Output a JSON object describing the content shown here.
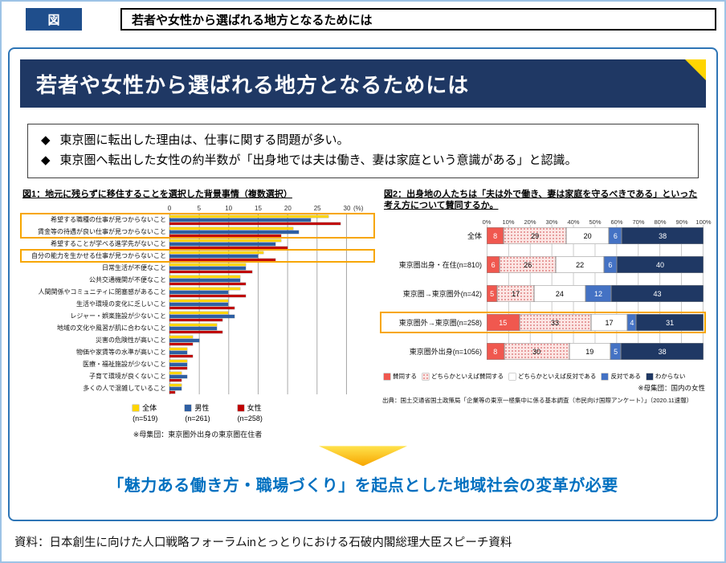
{
  "page_header": {
    "tag": "図",
    "title": "若者や女性から選ばれる地方となるためには"
  },
  "banner": {
    "title": "若者や女性から選ばれる地方となるためには",
    "background": "#1F3864",
    "corner_triangle_color": "#FFD500"
  },
  "key_points": [
    {
      "bullet": "◆",
      "text": "東京圏に転出した理由は、仕事に関する問題が多い。"
    },
    {
      "bullet": "◆",
      "text": "東京圏へ転出した女性の約半数が「出身地では夫は働き、妻は家庭という意識がある」と認識。"
    }
  ],
  "chart_data": [
    {
      "type": "bar",
      "orientation": "horizontal",
      "title": "図1：地元に残らずに移住することを選択した背景事情（複数選択）",
      "x_unit": "(%)",
      "x_ticks": [
        0,
        5,
        10,
        15,
        20,
        25,
        30
      ],
      "xlim": [
        0,
        30
      ],
      "grid": true,
      "legend_position": "bottom",
      "categories": [
        "希望する職種の仕事が見つからないこと",
        "賃金等の待遇が良い仕事が見つからないこと",
        "希望することが学べる進学先がないこと",
        "自分の能力を生かせる仕事が見つからないこと",
        "日常生活が不便なこと",
        "公共交通機関が不便なこと",
        "人間関係やコミュニティに閉塞感があること",
        "生活や環境の変化に乏しいこと",
        "レジャー・娯楽施設が少ないこと",
        "地域の文化や風習が肌に合わないこと",
        "災害の危険性が高いこと",
        "物価や家賃等の水準が高いこと",
        "医療・福祉施設が少ないこと",
        "子育て環境が良くないこと",
        "多くの人で混雑していること"
      ],
      "series": [
        {
          "name": "全体",
          "n_label": "(n=519)",
          "color": "#FFD500",
          "values": [
            27,
            21,
            19,
            16,
            13,
            12,
            12,
            10,
            10,
            8,
            4,
            3,
            3,
            2,
            2
          ]
        },
        {
          "name": "男性",
          "n_label": "(n=261)",
          "color": "#2E5FA3",
          "values": [
            24,
            22,
            18,
            15,
            13,
            12,
            10,
            10,
            11,
            8,
            5,
            3,
            3,
            3,
            2
          ]
        },
        {
          "name": "女性",
          "n_label": "(n=258)",
          "color": "#C00000",
          "values": [
            29,
            19,
            20,
            18,
            14,
            13,
            13,
            11,
            9,
            9,
            4,
            4,
            3,
            2,
            1
          ]
        }
      ],
      "highlight_groups": [
        [
          0,
          1
        ],
        [
          3
        ]
      ],
      "highlight_color": "#F7A600",
      "note": "※母集団：東京圏外出身の東京圏在住者"
    },
    {
      "type": "stacked-bar",
      "orientation": "horizontal",
      "title": "図2：出身地の人たちは「夫は外で働き、妻は家庭を守るべきである」といった考え方について賛同するか。",
      "x_ticks": [
        "0%",
        "10%",
        "20%",
        "30%",
        "40%",
        "50%",
        "60%",
        "70%",
        "80%",
        "90%",
        "100%"
      ],
      "grid": true,
      "legend_position": "bottom",
      "categories": [
        "全体",
        "東京圏出身・在住(n=810)",
        "東京圏→東京圏外(n=42)",
        "東京圏外→東京圏(n=258)",
        "東京圏外出身(n=1056)"
      ],
      "segments": [
        {
          "name": "賛同する",
          "color": "#F0584F",
          "text_color": "#ffffff",
          "pattern": "solid"
        },
        {
          "name": "どちらかといえば賛同する",
          "color": "#FCE6E4",
          "text_color": "#000000",
          "pattern": "dots"
        },
        {
          "name": "どちらかといえば反対である",
          "color": "#FFFFFF",
          "text_color": "#000000",
          "pattern": "solid"
        },
        {
          "name": "反対である",
          "color": "#4472C4",
          "text_color": "#ffffff",
          "pattern": "solid"
        },
        {
          "name": "わからない",
          "color": "#1F3864",
          "text_color": "#ffffff",
          "pattern": "solid"
        }
      ],
      "values": [
        [
          8,
          29,
          20,
          6,
          38
        ],
        [
          6,
          26,
          22,
          6,
          40
        ],
        [
          5,
          17,
          24,
          12,
          43
        ],
        [
          15,
          33,
          17,
          4,
          31
        ],
        [
          8,
          30,
          19,
          5,
          38
        ]
      ],
      "highlight_row": 3,
      "highlight_color": "#F7A600",
      "note": "※母集団：国内の女性",
      "source": "出典：国土交通省国土政策局「企業等の東京一極集中に係る基本調査（市民向け国際アンケート）」（2020.11速報）"
    }
  ],
  "conclusion": "「魅力ある働き方・職場づくり」を起点とした地域社会の変革が必要",
  "footer": "資料：日本創生に向けた人口戦略フォーラムinとっとりにおける石破内閣総理大臣スピーチ資料",
  "colors": {
    "accent_blue": "#0070C0",
    "panel_border_blue": "#2E75B6",
    "banner_navy": "#1F3864",
    "highlight_orange": "#F7A600",
    "arrow_yellow_top": "#FFE34D",
    "arrow_orange_bottom": "#F7A600"
  }
}
